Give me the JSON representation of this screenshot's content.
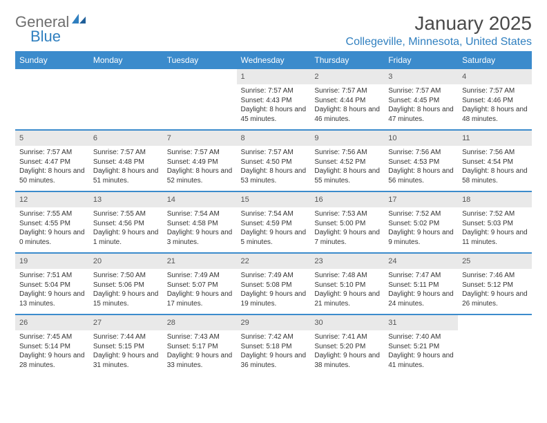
{
  "brand": {
    "part1": "General",
    "part2": "Blue"
  },
  "title": "January 2025",
  "location": "Collegeville, Minnesota, United States",
  "colors": {
    "header_bg": "#3b8bcc",
    "header_text": "#ffffff",
    "accent": "#2f7fbf",
    "daynum_bg": "#e9e9e9",
    "body_text": "#333333",
    "logo_gray": "#6e6e6e",
    "separator": "#3b8bcc"
  },
  "day_headers": [
    "Sunday",
    "Monday",
    "Tuesday",
    "Wednesday",
    "Thursday",
    "Friday",
    "Saturday"
  ],
  "weeks": [
    [
      null,
      null,
      null,
      {
        "n": "1",
        "sr": "7:57 AM",
        "ss": "4:43 PM",
        "dl": "8 hours and 45 minutes."
      },
      {
        "n": "2",
        "sr": "7:57 AM",
        "ss": "4:44 PM",
        "dl": "8 hours and 46 minutes."
      },
      {
        "n": "3",
        "sr": "7:57 AM",
        "ss": "4:45 PM",
        "dl": "8 hours and 47 minutes."
      },
      {
        "n": "4",
        "sr": "7:57 AM",
        "ss": "4:46 PM",
        "dl": "8 hours and 48 minutes."
      }
    ],
    [
      {
        "n": "5",
        "sr": "7:57 AM",
        "ss": "4:47 PM",
        "dl": "8 hours and 50 minutes."
      },
      {
        "n": "6",
        "sr": "7:57 AM",
        "ss": "4:48 PM",
        "dl": "8 hours and 51 minutes."
      },
      {
        "n": "7",
        "sr": "7:57 AM",
        "ss": "4:49 PM",
        "dl": "8 hours and 52 minutes."
      },
      {
        "n": "8",
        "sr": "7:57 AM",
        "ss": "4:50 PM",
        "dl": "8 hours and 53 minutes."
      },
      {
        "n": "9",
        "sr": "7:56 AM",
        "ss": "4:52 PM",
        "dl": "8 hours and 55 minutes."
      },
      {
        "n": "10",
        "sr": "7:56 AM",
        "ss": "4:53 PM",
        "dl": "8 hours and 56 minutes."
      },
      {
        "n": "11",
        "sr": "7:56 AM",
        "ss": "4:54 PM",
        "dl": "8 hours and 58 minutes."
      }
    ],
    [
      {
        "n": "12",
        "sr": "7:55 AM",
        "ss": "4:55 PM",
        "dl": "9 hours and 0 minutes."
      },
      {
        "n": "13",
        "sr": "7:55 AM",
        "ss": "4:56 PM",
        "dl": "9 hours and 1 minute."
      },
      {
        "n": "14",
        "sr": "7:54 AM",
        "ss": "4:58 PM",
        "dl": "9 hours and 3 minutes."
      },
      {
        "n": "15",
        "sr": "7:54 AM",
        "ss": "4:59 PM",
        "dl": "9 hours and 5 minutes."
      },
      {
        "n": "16",
        "sr": "7:53 AM",
        "ss": "5:00 PM",
        "dl": "9 hours and 7 minutes."
      },
      {
        "n": "17",
        "sr": "7:52 AM",
        "ss": "5:02 PM",
        "dl": "9 hours and 9 minutes."
      },
      {
        "n": "18",
        "sr": "7:52 AM",
        "ss": "5:03 PM",
        "dl": "9 hours and 11 minutes."
      }
    ],
    [
      {
        "n": "19",
        "sr": "7:51 AM",
        "ss": "5:04 PM",
        "dl": "9 hours and 13 minutes."
      },
      {
        "n": "20",
        "sr": "7:50 AM",
        "ss": "5:06 PM",
        "dl": "9 hours and 15 minutes."
      },
      {
        "n": "21",
        "sr": "7:49 AM",
        "ss": "5:07 PM",
        "dl": "9 hours and 17 minutes."
      },
      {
        "n": "22",
        "sr": "7:49 AM",
        "ss": "5:08 PM",
        "dl": "9 hours and 19 minutes."
      },
      {
        "n": "23",
        "sr": "7:48 AM",
        "ss": "5:10 PM",
        "dl": "9 hours and 21 minutes."
      },
      {
        "n": "24",
        "sr": "7:47 AM",
        "ss": "5:11 PM",
        "dl": "9 hours and 24 minutes."
      },
      {
        "n": "25",
        "sr": "7:46 AM",
        "ss": "5:12 PM",
        "dl": "9 hours and 26 minutes."
      }
    ],
    [
      {
        "n": "26",
        "sr": "7:45 AM",
        "ss": "5:14 PM",
        "dl": "9 hours and 28 minutes."
      },
      {
        "n": "27",
        "sr": "7:44 AM",
        "ss": "5:15 PM",
        "dl": "9 hours and 31 minutes."
      },
      {
        "n": "28",
        "sr": "7:43 AM",
        "ss": "5:17 PM",
        "dl": "9 hours and 33 minutes."
      },
      {
        "n": "29",
        "sr": "7:42 AM",
        "ss": "5:18 PM",
        "dl": "9 hours and 36 minutes."
      },
      {
        "n": "30",
        "sr": "7:41 AM",
        "ss": "5:20 PM",
        "dl": "9 hours and 38 minutes."
      },
      {
        "n": "31",
        "sr": "7:40 AM",
        "ss": "5:21 PM",
        "dl": "9 hours and 41 minutes."
      },
      null
    ]
  ],
  "labels": {
    "sunrise": "Sunrise:",
    "sunset": "Sunset:",
    "daylight": "Daylight:"
  }
}
